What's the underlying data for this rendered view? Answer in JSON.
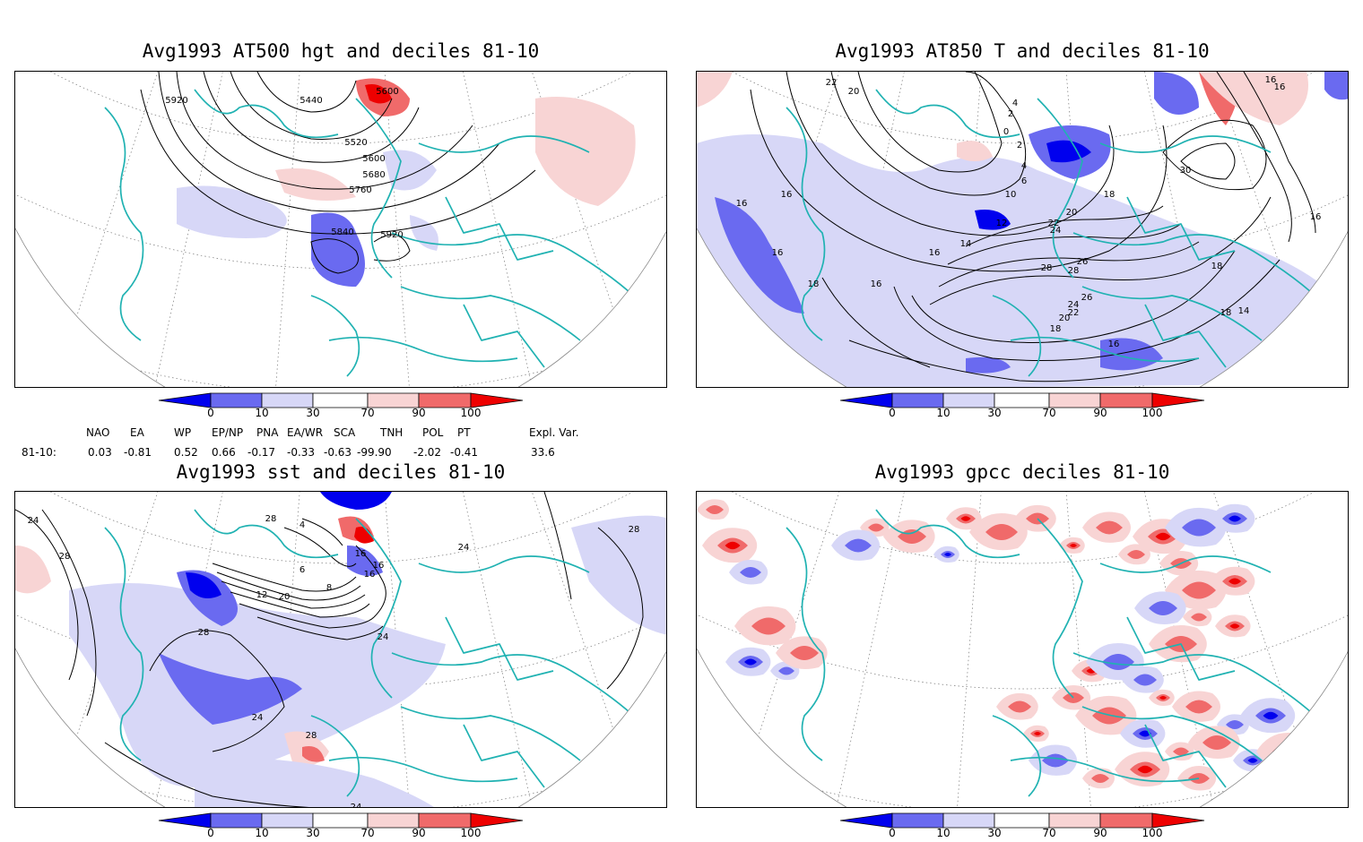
{
  "colors": {
    "coast": "#20b2b2",
    "contour": "#000000",
    "blue_dark": "#0000ee",
    "blue_mid": "#6a6af0",
    "blue_light": "#d7d7f7",
    "red_light": "#f8d4d4",
    "red_mid": "#f06a6a",
    "red_dark": "#ee0000"
  },
  "panels": [
    {
      "id": "p1",
      "title": "Avg1993 AT500 hgt and deciles 81-10",
      "contour_labels": [
        "5920",
        "5440",
        "5600",
        "5520",
        "5600",
        "5680",
        "5760",
        "5840",
        "5920"
      ]
    },
    {
      "id": "p2",
      "title": "Avg1993 AT850 T and deciles 81-10",
      "contour_labels": [
        "22",
        "20",
        "4",
        "2",
        "0",
        "2",
        "4",
        "6",
        "10",
        "16",
        "16",
        "16",
        "12",
        "14",
        "16",
        "20",
        "22",
        "24",
        "26",
        "28",
        "28",
        "26",
        "24",
        "22",
        "20",
        "18",
        "16",
        "18",
        "16",
        "16",
        "30",
        "18",
        "16",
        "18",
        "14",
        "18",
        "16"
      ]
    },
    {
      "id": "p3",
      "title": "Avg1993 sst and deciles 81-10",
      "contour_labels": [
        "24",
        "28",
        "28",
        "4",
        "6",
        "8",
        "12",
        "16",
        "16",
        "20",
        "24",
        "28",
        "24",
        "28",
        "24",
        "24",
        "28",
        "16"
      ]
    },
    {
      "id": "p4",
      "title": "Avg1993 gpcc deciles 81-10",
      "contour_labels": []
    }
  ],
  "colorbar": {
    "ticks": [
      "0",
      "10",
      "30",
      "70",
      "90",
      "100"
    ]
  },
  "indices": {
    "row_label": "81-10:",
    "headers": [
      "NAO",
      "EA",
      "WP",
      "EP/NP",
      "PNA",
      "EA/WR",
      "SCA",
      "TNH",
      "POL",
      "PT",
      "Expl. Var."
    ],
    "values": [
      "0.03",
      "-0.81",
      "0.52",
      "0.66",
      "-0.17",
      "-0.33",
      "-0.63",
      "-99.90",
      "-2.02",
      "-0.41",
      "33.6"
    ]
  }
}
